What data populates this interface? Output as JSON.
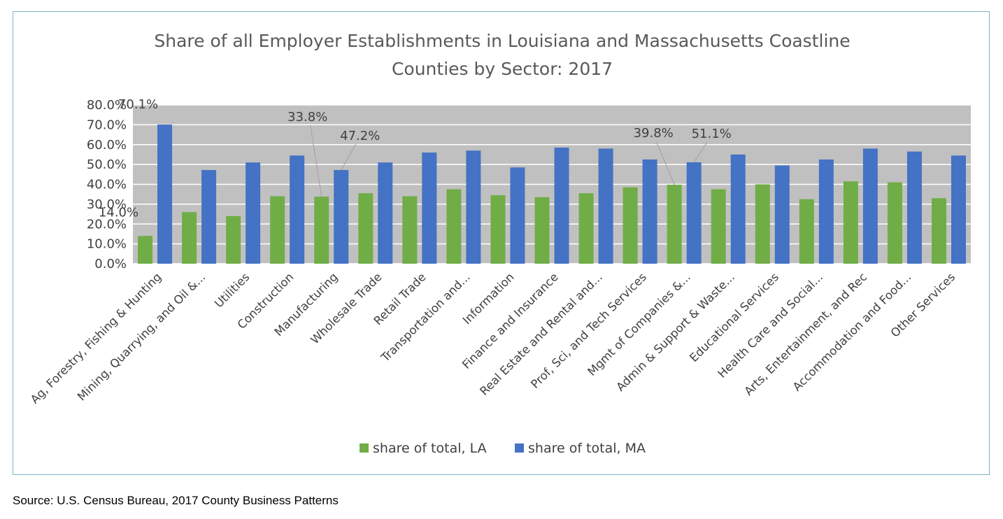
{
  "colors": {
    "series_la": "#70ad47",
    "series_ma": "#4472c4",
    "plot_background": "#c0c0c0",
    "gridline": "#ffffff",
    "frame_border": "#7fb3c4"
  },
  "source_note": "Source: U.S. Census Bureau, 2017 County Business Patterns",
  "chart_data": {
    "type": "bar",
    "title_lines": [
      "Share of all Employer Establishments in Louisiana and Massachusetts Coastline",
      "Counties by Sector: 2017"
    ],
    "xlabel": "",
    "ylabel": "",
    "ylim": [
      0,
      80
    ],
    "yticks": [
      "0.0%",
      "10.0%",
      "20.0%",
      "30.0%",
      "40.0%",
      "50.0%",
      "60.0%",
      "70.0%",
      "80.0%"
    ],
    "grid": true,
    "legend": "bottom",
    "categories": [
      "Ag, Forestry, Fishing & Hunting",
      "Mining, Quarrying, and Oil &...",
      "Utilities",
      "Construction",
      "Manufacturing",
      "Wholesale Trade",
      "Retail Trade",
      "Transportation and...",
      "Information",
      "Finance and Insurance",
      "Real Estate and Rental and...",
      "Prof, Sci, and Tech Services",
      "Mgmt of Companies &...",
      "Admin & Support & Waste...",
      "Educational Services",
      "Health Care and Social...",
      "Arts, Entertainment, and Rec",
      "Accommodation and Food...",
      "Other Services"
    ],
    "series": [
      {
        "name": "share of total, LA",
        "values": [
          14.0,
          26.0,
          24.0,
          34.0,
          33.8,
          35.5,
          34.0,
          37.5,
          34.5,
          33.5,
          35.5,
          38.5,
          39.8,
          37.5,
          40.0,
          32.5,
          41.5,
          41.0,
          33.0
        ]
      },
      {
        "name": "share of total, MA",
        "values": [
          70.1,
          47.2,
          51.0,
          54.5,
          47.2,
          51.0,
          56.0,
          57.0,
          48.5,
          58.5,
          58.0,
          52.5,
          51.1,
          55.0,
          49.5,
          52.5,
          58.0,
          56.5,
          54.5
        ]
      }
    ],
    "data_labels": [
      {
        "series": 0,
        "index": 0,
        "text": "14.0%"
      },
      {
        "series": 1,
        "index": 0,
        "text": "70.1%"
      },
      {
        "series": 0,
        "index": 4,
        "text": "33.8%"
      },
      {
        "series": 1,
        "index": 4,
        "text": "47.2%"
      },
      {
        "series": 0,
        "index": 12,
        "text": "39.8%"
      },
      {
        "series": 1,
        "index": 12,
        "text": "51.1%"
      }
    ]
  }
}
